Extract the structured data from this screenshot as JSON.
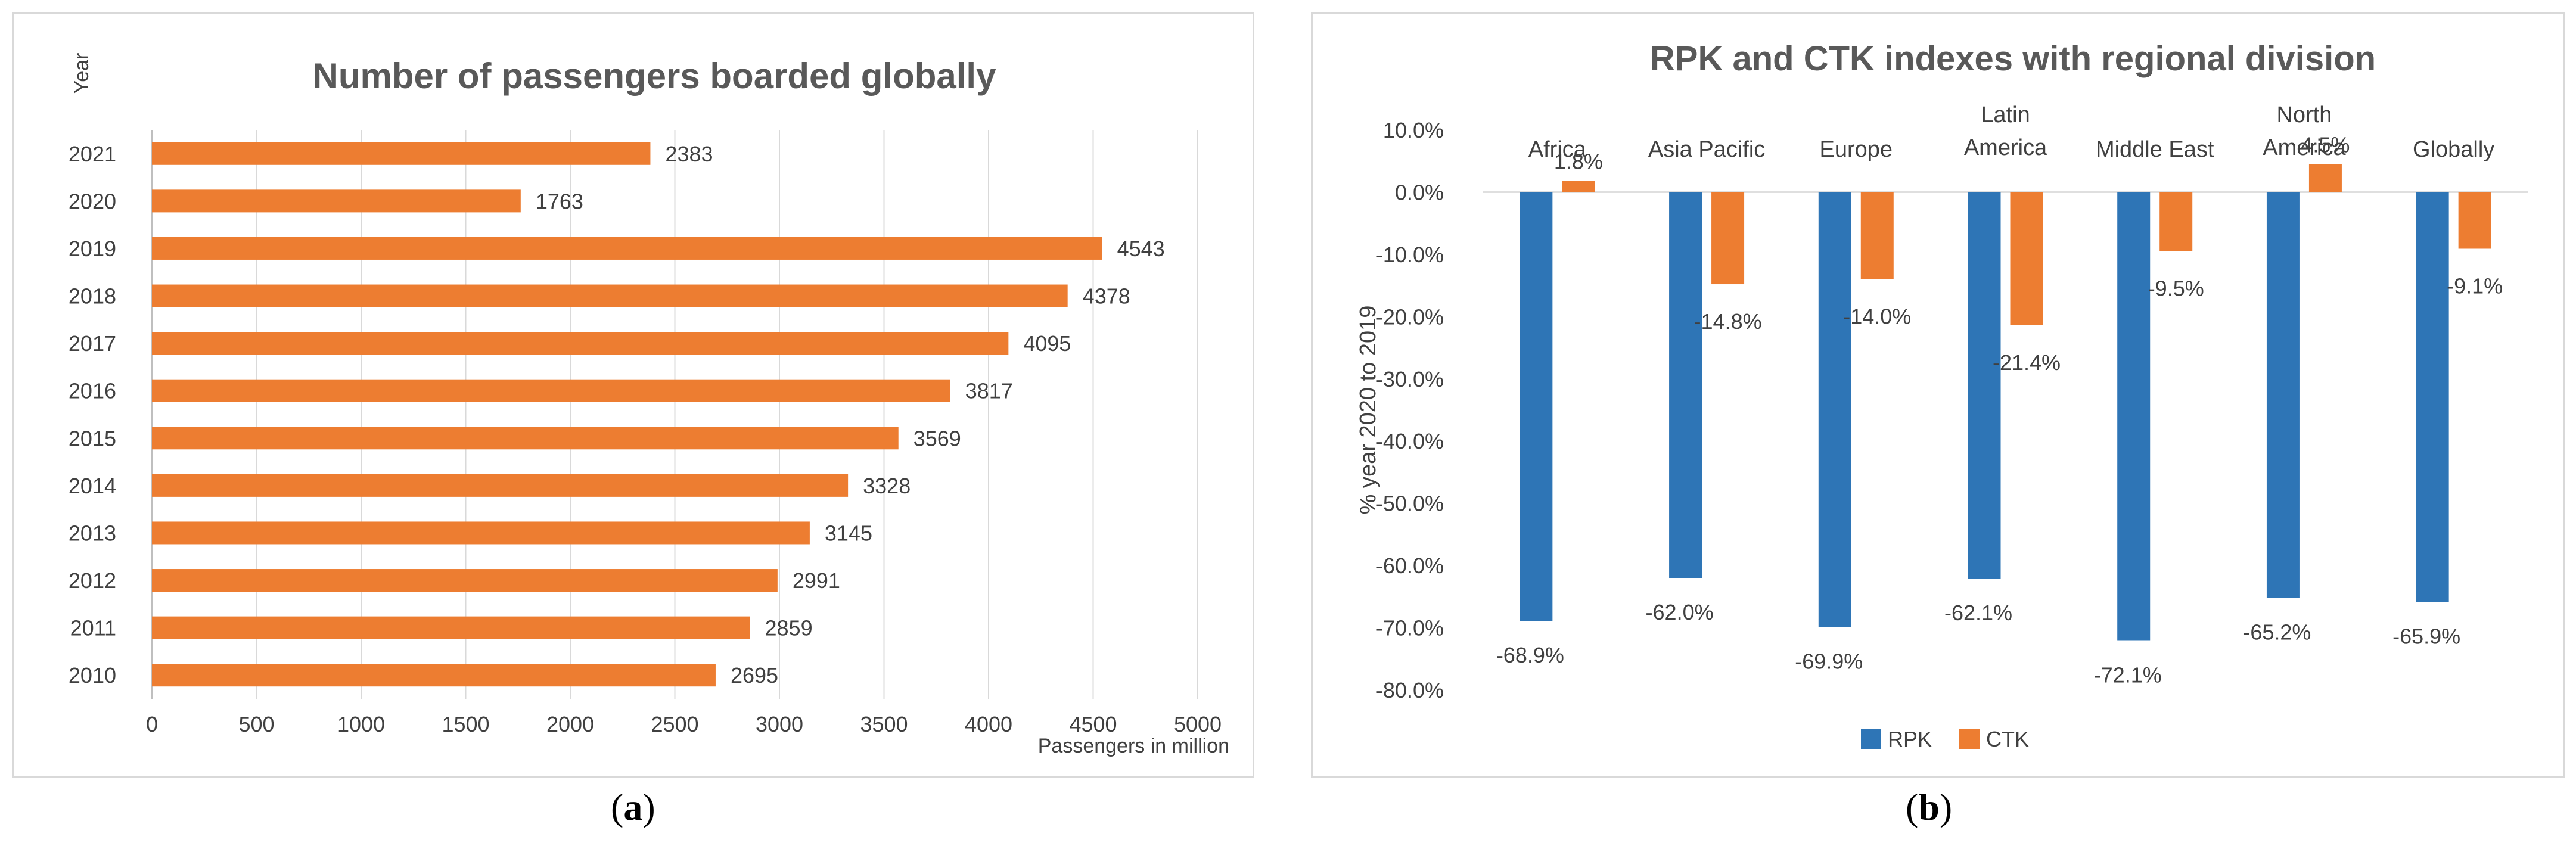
{
  "chart_data": [
    {
      "type": "bar",
      "orientation": "horizontal",
      "title": "Number of passengers  boarded globally",
      "ylabel": "Year",
      "xlabel": "Passengers in million",
      "categories": [
        "2021",
        "2020",
        "2019",
        "2018",
        "2017",
        "2016",
        "2015",
        "2014",
        "2013",
        "2012",
        "2011",
        "2010"
      ],
      "values": [
        2383,
        1763,
        4543,
        4378,
        4095,
        3817,
        3569,
        3328,
        3145,
        2991,
        2859,
        2695
      ],
      "data_labels": [
        "2383",
        "1763",
        "4543",
        "4378",
        "4095",
        "3817",
        "3569",
        "3328",
        "3145",
        "2991",
        "2859",
        "2695"
      ],
      "xlim": [
        0,
        5000
      ],
      "xticks": [
        0,
        500,
        1000,
        1500,
        2000,
        2500,
        3000,
        3500,
        4000,
        4500,
        5000
      ],
      "xtick_labels": [
        "0",
        "500",
        "1000",
        "1500",
        "2000",
        "2500",
        "3000",
        "3500",
        "4000",
        "4500",
        "5000"
      ],
      "grid": "vertical",
      "color": "#ED7D31"
    },
    {
      "type": "bar",
      "title": "RPK and CTK indexes with regional division",
      "ylabel": "% year 2020 to 2019",
      "categories": [
        [
          "Africa"
        ],
        [
          "Asia Pacific"
        ],
        [
          "Europe"
        ],
        [
          "Latin",
          "America"
        ],
        [
          "Middle East"
        ],
        [
          "North",
          "America"
        ],
        [
          "Globally"
        ]
      ],
      "series": [
        {
          "name": "RPK",
          "color": "#2E75B6",
          "values": [
            -68.9,
            -62.0,
            -69.9,
            -62.1,
            -72.1,
            -65.2,
            -65.9
          ],
          "labels": [
            "-68.9%",
            "-62.0%",
            "-69.9%",
            "-62.1%",
            "-72.1%",
            "-65.2%",
            "-65.9%"
          ]
        },
        {
          "name": "CTK",
          "color": "#ED7D31",
          "values": [
            1.8,
            -14.8,
            -14.0,
            -21.4,
            -9.5,
            4.5,
            -9.1
          ],
          "labels": [
            "1.8%",
            "-14.8%",
            "-14.0%",
            "-21.4%",
            "-9.5%",
            "4.5%",
            "-9.1%"
          ]
        }
      ],
      "ylim": [
        -80,
        10
      ],
      "yticks": [
        10,
        0,
        -10,
        -20,
        -30,
        -40,
        -50,
        -60,
        -70,
        -80
      ],
      "ytick_labels": [
        "10.0%",
        "0.0%",
        "-10.0%",
        "-20.0%",
        "-30.0%",
        "-40.0%",
        "-50.0%",
        "-60.0%",
        "-70.0%",
        "-80.0%"
      ],
      "legend": "bottom-center",
      "grid": false
    }
  ],
  "captions": {
    "a": {
      "open": "(",
      "letter": "a",
      "close": ")"
    },
    "b": {
      "open": "(",
      "letter": "b",
      "close": ")"
    }
  },
  "colors": {
    "axis": "#bfbfbf",
    "grid": "#d9d9d9",
    "text": "#404040",
    "title": "#595959"
  }
}
